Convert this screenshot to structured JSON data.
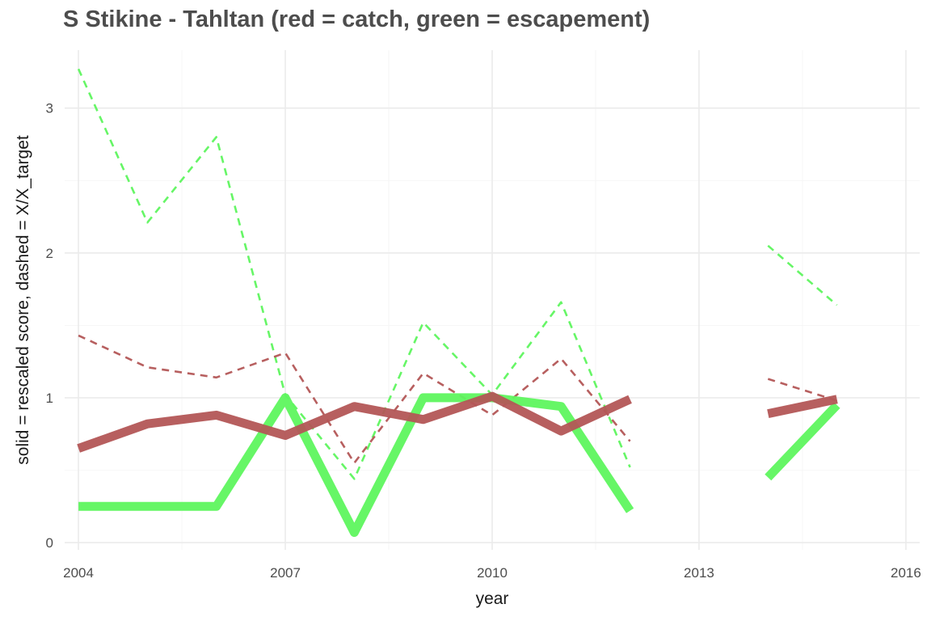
{
  "chart_data": {
    "type": "line",
    "title": "S Stikine - Tahltan (red = catch, green = escapement)",
    "xlabel": "year",
    "ylabel": "solid = rescaled score, dashed = X/X_target",
    "xlim": [
      2003.8,
      2016.2
    ],
    "ylim": [
      -0.05,
      3.4
    ],
    "x_ticks": [
      2004,
      2007,
      2010,
      2013,
      2016
    ],
    "y_ticks": [
      0,
      1,
      2,
      3
    ],
    "grid": true,
    "legend": "none",
    "x": [
      2004,
      2005,
      2006,
      2007,
      2008,
      2009,
      2010,
      2011,
      2012,
      2013,
      2014,
      2015
    ],
    "series": [
      {
        "color": "#5ef55e",
        "style": "solid",
        "values": [
          0.25,
          0.25,
          0.25,
          1.0,
          0.07,
          1.0,
          1.0,
          0.94,
          0.22,
          null,
          0.45,
          0.95
        ]
      },
      {
        "color": "#b35656",
        "style": "solid",
        "values": [
          0.65,
          0.82,
          0.88,
          0.74,
          0.94,
          0.85,
          1.01,
          0.77,
          0.99,
          null,
          0.89,
          0.99
        ]
      },
      {
        "color": "#5ef55e",
        "style": "dashed",
        "values": [
          3.27,
          2.21,
          2.8,
          1.02,
          0.44,
          1.52,
          1.02,
          1.66,
          0.52,
          null,
          2.05,
          1.64
        ]
      },
      {
        "color": "#b35656",
        "style": "dashed",
        "values": [
          1.43,
          1.21,
          1.14,
          1.31,
          0.55,
          1.17,
          0.88,
          1.27,
          0.7,
          null,
          1.13,
          0.98
        ]
      }
    ]
  }
}
